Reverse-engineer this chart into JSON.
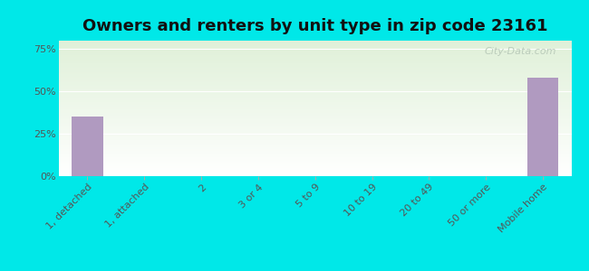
{
  "title": "Owners and renters by unit type in zip code 23161",
  "categories": [
    "1, detached",
    "1, attached",
    "2",
    "3 or 4",
    "5 to 9",
    "10 to 19",
    "20 to 49",
    "50 or more",
    "Mobile home"
  ],
  "values": [
    35.0,
    0,
    0,
    0,
    0,
    0,
    0,
    0,
    58.0
  ],
  "bar_color": "#b09ac0",
  "background_color": "#00e8e8",
  "plot_bg_top": "#dff0d8",
  "plot_bg_bottom": "#ffffff",
  "yticks": [
    0,
    25,
    50,
    75
  ],
  "ytick_labels": [
    "0%",
    "25%",
    "50%",
    "75%"
  ],
  "ylim": [
    0,
    80
  ],
  "title_fontsize": 13,
  "tick_fontsize": 8,
  "watermark": "City-Data.com"
}
